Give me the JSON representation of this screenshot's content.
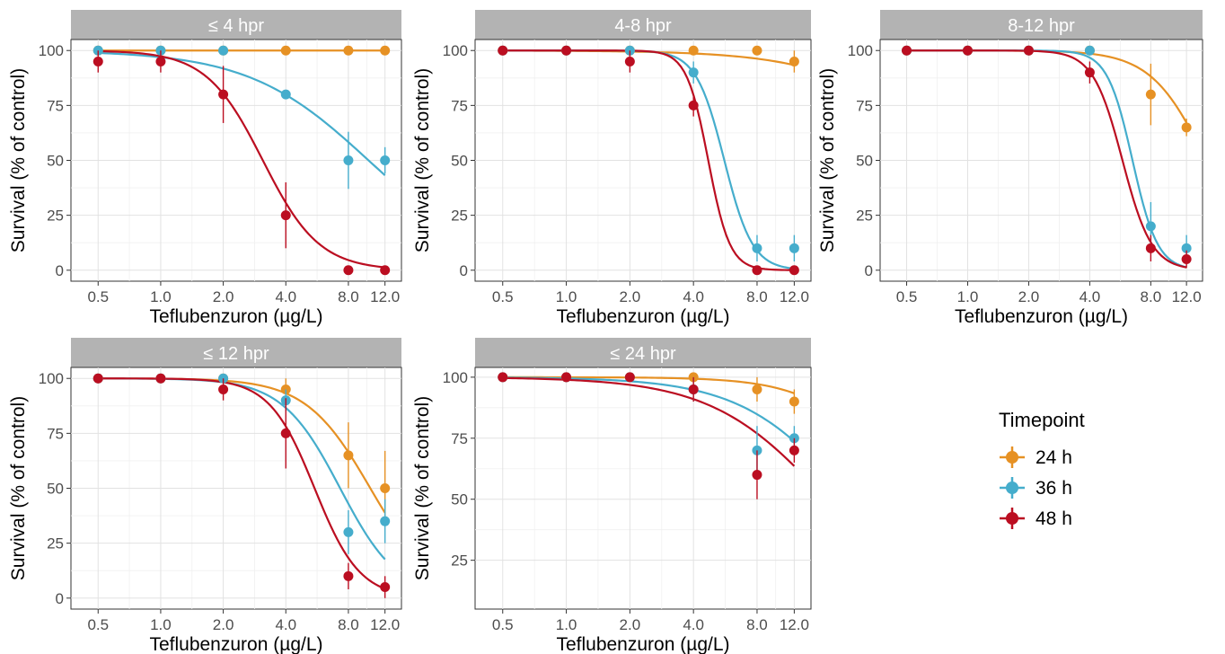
{
  "chart_data": {
    "type": "scatter",
    "x_label": "Teflubenzuron (µg/L)",
    "y_label": "Survival (% of control)",
    "x_ticks": [
      "0.5",
      "1.0",
      "2.0",
      "4.0",
      "8.0",
      "12.0"
    ],
    "x_tick_values": [
      0.5,
      1.0,
      2.0,
      4.0,
      8.0,
      12.0
    ],
    "x_scale": "log",
    "x_range": [
      0.37,
      14.4
    ],
    "grid": true,
    "legend": {
      "title": "Timepoint",
      "placement": "right",
      "entries": [
        {
          "label": "24 h",
          "color": "#E69124"
        },
        {
          "label": "36 h",
          "color": "#45ADCC"
        },
        {
          "label": "48 h",
          "color": "#BB0E21"
        }
      ]
    },
    "panels": [
      {
        "strip": "≤ 4 hpr",
        "y_ticks": [
          0,
          25,
          50,
          75,
          100
        ],
        "y_range": [
          -5,
          105
        ],
        "series": [
          {
            "name": "24 h",
            "x": [
              0.5,
              1.0,
              2.0,
              4.0,
              8.0,
              12.0
            ],
            "y": [
              100,
              100,
              100,
              100,
              100,
              100
            ],
            "err": [
              0,
              0,
              0,
              0,
              0,
              0
            ],
            "fit": {
              "ec50": 1000,
              "slope": 3
            }
          },
          {
            "name": "36 h",
            "x": [
              0.5,
              1.0,
              2.0,
              4.0,
              8.0,
              12.0
            ],
            "y": [
              100,
              100,
              100,
              80,
              50,
              50
            ],
            "err": [
              0,
              0,
              0,
              0,
              13,
              6
            ],
            "fit": {
              "ec50": 10,
              "slope": 1.5
            }
          },
          {
            "name": "48 h",
            "x": [
              0.5,
              1.0,
              2.0,
              4.0,
              8.0,
              12.0
            ],
            "y": [
              95,
              95,
              80,
              25,
              0,
              0
            ],
            "err": [
              5,
              5,
              13,
              15,
              0,
              0
            ],
            "fit": {
              "ec50": 3.1,
              "slope": 3.2
            }
          }
        ]
      },
      {
        "strip": "4-8 hpr",
        "y_ticks": [
          0,
          25,
          50,
          75,
          100
        ],
        "y_range": [
          -5,
          105
        ],
        "series": [
          {
            "name": "24 h",
            "x": [
              0.5,
              1.0,
              2.0,
              4.0,
              8.0,
              12.0
            ],
            "y": [
              100,
              100,
              100,
              100,
              100,
              95
            ],
            "err": [
              0,
              0,
              0,
              0,
              0,
              5
            ],
            "fit": {
              "ec50": 70,
              "slope": 1.5
            }
          },
          {
            "name": "36 h",
            "x": [
              0.5,
              1.0,
              2.0,
              4.0,
              8.0,
              12.0
            ],
            "y": [
              100,
              100,
              100,
              90,
              10,
              10
            ],
            "err": [
              0,
              0,
              0,
              5,
              6,
              6
            ],
            "fit": {
              "ec50": 5.6,
              "slope": 6.5
            }
          },
          {
            "name": "48 h",
            "x": [
              0.5,
              1.0,
              2.0,
              4.0,
              8.0,
              12.0
            ],
            "y": [
              100,
              100,
              95,
              75,
              0,
              0
            ],
            "err": [
              0,
              0,
              5,
              5,
              0,
              0
            ],
            "fit": {
              "ec50": 4.7,
              "slope": 8.5
            }
          }
        ]
      },
      {
        "strip": "8-12 hpr",
        "y_ticks": [
          0,
          25,
          50,
          75,
          100
        ],
        "y_range": [
          -5,
          105
        ],
        "series": [
          {
            "name": "24 h",
            "x": [
              0.5,
              1.0,
              2.0,
              4.0,
              8.0,
              12.0
            ],
            "y": [
              100,
              100,
              100,
              100,
              80,
              65
            ],
            "err": [
              0,
              0,
              0,
              0,
              14,
              4
            ],
            "fit": {
              "ec50": 15,
              "slope": 3.2
            }
          },
          {
            "name": "36 h",
            "x": [
              0.5,
              1.0,
              2.0,
              4.0,
              8.0,
              12.0
            ],
            "y": [
              100,
              100,
              100,
              100,
              20,
              10
            ],
            "err": [
              0,
              0,
              0,
              0,
              11,
              6
            ],
            "fit": {
              "ec50": 6.5,
              "slope": 7
            }
          },
          {
            "name": "48 h",
            "x": [
              0.5,
              1.0,
              2.0,
              4.0,
              8.0,
              12.0
            ],
            "y": [
              100,
              100,
              100,
              90,
              10,
              5
            ],
            "err": [
              0,
              0,
              0,
              5,
              6,
              4
            ],
            "fit": {
              "ec50": 5.8,
              "slope": 6
            }
          }
        ]
      },
      {
        "strip": "≤ 12 hpr",
        "y_ticks": [
          0,
          25,
          50,
          75,
          100
        ],
        "y_range": [
          -5,
          105
        ],
        "series": [
          {
            "name": "24 h",
            "x": [
              0.5,
              1.0,
              2.0,
              4.0,
              8.0,
              12.0
            ],
            "y": [
              100,
              100,
              100,
              95,
              65,
              50
            ],
            "err": [
              0,
              0,
              0,
              5,
              15,
              17
            ],
            "fit": {
              "ec50": 10.2,
              "slope": 2.8
            }
          },
          {
            "name": "36 h",
            "x": [
              0.5,
              1.0,
              2.0,
              4.0,
              8.0,
              12.0
            ],
            "y": [
              100,
              100,
              100,
              90,
              30,
              35
            ],
            "err": [
              0,
              0,
              0,
              5,
              10,
              10
            ],
            "fit": {
              "ec50": 7.3,
              "slope": 3.1
            }
          },
          {
            "name": "48 h",
            "x": [
              0.5,
              1.0,
              2.0,
              4.0,
              8.0,
              12.0
            ],
            "y": [
              100,
              100,
              95,
              75,
              10,
              5
            ],
            "err": [
              0,
              0,
              5,
              16,
              6,
              5
            ],
            "fit": {
              "ec50": 5.5,
              "slope": 4
            }
          }
        ]
      },
      {
        "strip": "≤ 24 hpr",
        "y_ticks": [
          25,
          50,
          75,
          100
        ],
        "y_range": [
          5,
          104
        ],
        "series": [
          {
            "name": "24 h",
            "x": [
              0.5,
              1.0,
              2.0,
              4.0,
              8.0,
              12.0
            ],
            "y": [
              100,
              100,
              100,
              100,
              95,
              90
            ],
            "err": [
              0,
              0,
              0,
              0,
              5,
              5
            ],
            "fit": {
              "ec50": 40,
              "slope": 2.2
            }
          },
          {
            "name": "36 h",
            "x": [
              0.5,
              1.0,
              2.0,
              4.0,
              8.0,
              12.0
            ],
            "y": [
              100,
              100,
              100,
              95,
              70,
              75
            ],
            "err": [
              0,
              0,
              0,
              5,
              10,
              5
            ],
            "fit": {
              "ec50": 22,
              "slope": 1.7
            }
          },
          {
            "name": "48 h",
            "x": [
              0.5,
              1.0,
              2.0,
              4.0,
              8.0,
              12.0
            ],
            "y": [
              100,
              100,
              100,
              95,
              60,
              70
            ],
            "err": [
              0,
              0,
              0,
              5,
              10,
              5
            ],
            "fit": {
              "ec50": 17,
              "slope": 1.6
            }
          }
        ]
      }
    ]
  }
}
